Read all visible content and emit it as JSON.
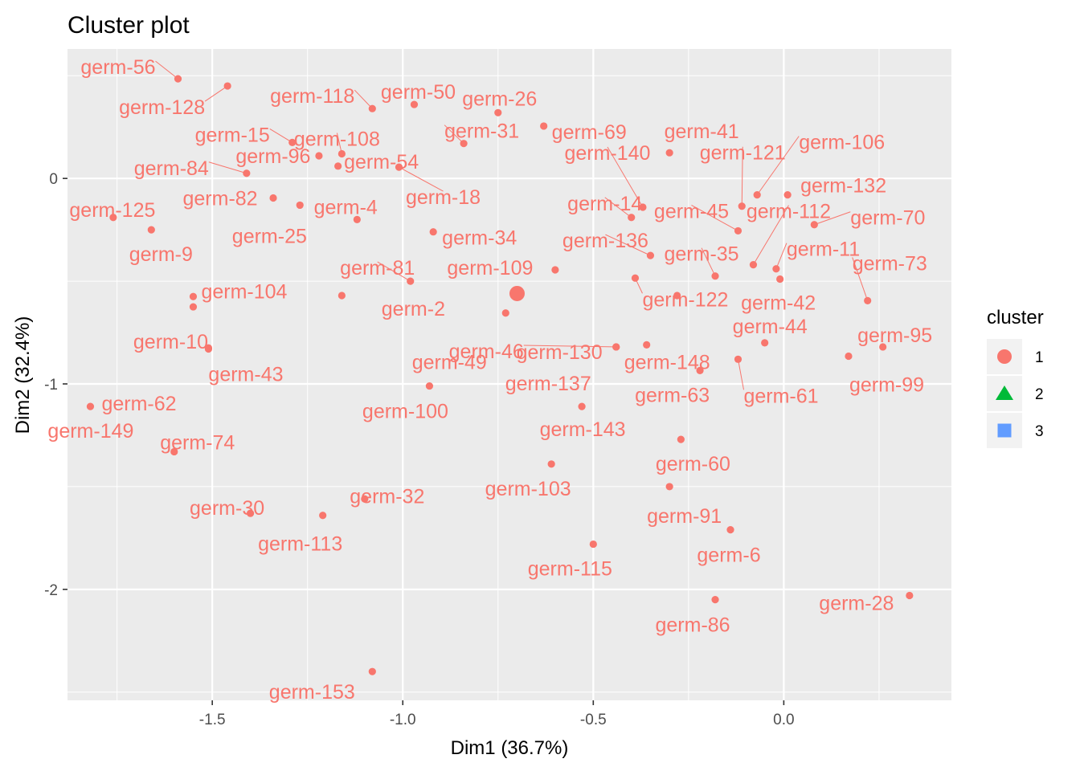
{
  "chart_data": {
    "type": "scatter",
    "title": "Cluster plot",
    "xlabel": "Dim1 (36.7%)",
    "ylabel": "Dim2 (32.4%)",
    "xlim": [
      -1.88,
      0.44
    ],
    "ylim": [
      -2.54,
      0.63
    ],
    "x_ticks": [
      -1.5,
      -1.0,
      -0.5,
      0.0
    ],
    "x_tick_labels": [
      "-1.5",
      "-1.0",
      "-0.5",
      "0.0"
    ],
    "y_ticks": [
      0,
      -1,
      -2
    ],
    "y_tick_labels": [
      "0",
      "-1",
      "-2"
    ],
    "grid": true,
    "legend": {
      "title": "cluster",
      "position": "right",
      "entries": [
        {
          "label": "1",
          "color": "#F8766D",
          "shape": "circle"
        },
        {
          "label": "2",
          "color": "#00BA38",
          "shape": "triangle"
        },
        {
          "label": "3",
          "color": "#619CFF",
          "shape": "square"
        }
      ]
    },
    "cluster_center": {
      "x": -0.7,
      "y": -0.56,
      "cluster": "1"
    },
    "series": [
      {
        "name": "1",
        "color": "#F8766D",
        "points": [
          {
            "label": "germ-56",
            "x": -1.59,
            "y": 0.485
          },
          {
            "label": "germ-128",
            "x": -1.46,
            "y": 0.45
          },
          {
            "label": "germ-50",
            "x": -0.97,
            "y": 0.36
          },
          {
            "label": "germ-118",
            "x": -1.08,
            "y": 0.34
          },
          {
            "label": "germ-26",
            "x": -0.75,
            "y": 0.32
          },
          {
            "label": "germ-69",
            "x": -0.63,
            "y": 0.255
          },
          {
            "label": "germ-41",
            "x": -0.3,
            "y": 0.125
          },
          {
            "label": "germ-15",
            "x": -1.29,
            "y": 0.175
          },
          {
            "label": "germ-108",
            "x": -1.16,
            "y": 0.12
          },
          {
            "label": "germ-31",
            "x": -0.84,
            "y": 0.17
          },
          {
            "label": "germ-96",
            "x": -1.22,
            "y": 0.11
          },
          {
            "label": "germ-84",
            "x": -1.41,
            "y": 0.025
          },
          {
            "label": "germ-54",
            "x": -1.17,
            "y": 0.06
          },
          {
            "label": "germ-18",
            "x": -1.01,
            "y": 0.055
          },
          {
            "label": "germ-106",
            "x": -0.07,
            "y": -0.08
          },
          {
            "label": "germ-140",
            "x": -0.37,
            "y": -0.14
          },
          {
            "label": "germ-121",
            "x": -0.11,
            "y": -0.135
          },
          {
            "label": "germ-132",
            "x": 0.01,
            "y": -0.08
          },
          {
            "label": "germ-82",
            "x": -1.34,
            "y": -0.095
          },
          {
            "label": "germ-4",
            "x": -1.27,
            "y": -0.13
          },
          {
            "label": "germ-14",
            "x": -0.4,
            "y": -0.19
          },
          {
            "label": "germ-45",
            "x": -0.12,
            "y": -0.255
          },
          {
            "label": "germ-125",
            "x": -1.76,
            "y": -0.19
          },
          {
            "label": "germ-9",
            "x": -1.66,
            "y": -0.25
          },
          {
            "label": "germ-25",
            "x": -1.12,
            "y": -0.2
          },
          {
            "label": "germ-34",
            "x": -0.92,
            "y": -0.26
          },
          {
            "label": "germ-112",
            "x": -0.08,
            "y": -0.42
          },
          {
            "label": "germ-70",
            "x": 0.08,
            "y": -0.225
          },
          {
            "label": "germ-136",
            "x": -0.35,
            "y": -0.375
          },
          {
            "label": "germ-35",
            "x": -0.18,
            "y": -0.475
          },
          {
            "label": "germ-11",
            "x": -0.02,
            "y": -0.44
          },
          {
            "label": "germ-81",
            "x": -0.98,
            "y": -0.5
          },
          {
            "label": "germ-109",
            "x": -0.6,
            "y": -0.445
          },
          {
            "label": "germ-73",
            "x": 0.22,
            "y": -0.595
          },
          {
            "label": "germ-104",
            "x": -1.55,
            "y": -0.575
          },
          {
            "label": "germ-122",
            "x": -0.39,
            "y": -0.485
          },
          {
            "label": "germ-42",
            "x": -0.01,
            "y": -0.49
          },
          {
            "label": "germ-2",
            "x": -1.16,
            "y": -0.57
          },
          {
            "label": "germ-130",
            "x": -0.28,
            "y": -0.57
          },
          {
            "label": "germ-10",
            "x": -1.55,
            "y": -0.625
          },
          {
            "label": "germ-49",
            "x": -0.73,
            "y": -0.655
          },
          {
            "label": "germ-149",
            "x": -1.51,
            "y": -0.825
          },
          {
            "label": "germ-46",
            "x": -0.44,
            "y": -0.82
          },
          {
            "label": "germ-44",
            "x": -0.05,
            "y": -0.8
          },
          {
            "label": "germ-95",
            "x": 0.26,
            "y": -0.82
          },
          {
            "label": "germ-148",
            "x": -0.36,
            "y": -0.81
          },
          {
            "label": "germ-43",
            "x": -1.51,
            "y": -0.83
          },
          {
            "label": "germ-137",
            "x": -0.44,
            "y": -0.82
          },
          {
            "label": "germ-99",
            "x": 0.17,
            "y": -0.865
          },
          {
            "label": "germ-63",
            "x": -0.22,
            "y": -0.935
          },
          {
            "label": "germ-61",
            "x": -0.12,
            "y": -0.88
          },
          {
            "label": "germ-62",
            "x": -1.82,
            "y": -1.11
          },
          {
            "label": "germ-100",
            "x": -0.93,
            "y": -1.01
          },
          {
            "label": "germ-143",
            "x": -0.53,
            "y": -1.11
          },
          {
            "label": "germ-74",
            "x": -1.6,
            "y": -1.33
          },
          {
            "label": "germ-60",
            "x": -0.27,
            "y": -1.27
          },
          {
            "label": "germ-32",
            "x": -1.1,
            "y": -1.56
          },
          {
            "label": "germ-103",
            "x": -0.61,
            "y": -1.39
          },
          {
            "label": "germ-91",
            "x": -0.3,
            "y": -1.5
          },
          {
            "label": "germ-30",
            "x": -1.4,
            "y": -1.63
          },
          {
            "label": "germ-113",
            "x": -1.21,
            "y": -1.64
          },
          {
            "label": "germ-6",
            "x": -0.14,
            "y": -1.71
          },
          {
            "label": "germ-115",
            "x": -0.5,
            "y": -1.78
          },
          {
            "label": "germ-28",
            "x": 0.33,
            "y": -2.03
          },
          {
            "label": "germ-86",
            "x": -0.18,
            "y": -2.05
          },
          {
            "label": "germ-153",
            "x": -1.08,
            "y": -2.4
          }
        ]
      }
    ]
  }
}
